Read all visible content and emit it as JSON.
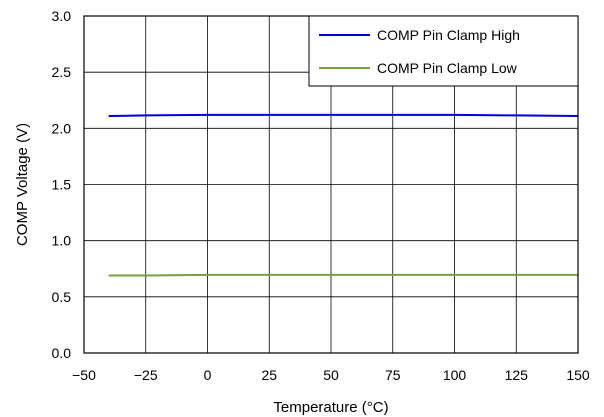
{
  "chart_data": {
    "type": "line",
    "title": "",
    "xlabel": "Temperature (°C)",
    "ylabel": "COMP Voltage (V)",
    "xlim": [
      -50,
      150
    ],
    "ylim": [
      0,
      3.0
    ],
    "x_ticks": [
      "−50",
      "−25",
      "0",
      "25",
      "50",
      "75",
      "100",
      "125",
      "150"
    ],
    "y_ticks": [
      "0.0",
      "0.5",
      "1.0",
      "1.5",
      "2.0",
      "2.5",
      "3.0"
    ],
    "grid": true,
    "legend_position": "top-right",
    "series": [
      {
        "name": "COMP Pin Clamp High",
        "color": "#0000dd",
        "x": [
          -40,
          -25,
          0,
          25,
          50,
          75,
          100,
          125,
          150
        ],
        "y": [
          2.11,
          2.115,
          2.12,
          2.12,
          2.12,
          2.12,
          2.12,
          2.115,
          2.11
        ]
      },
      {
        "name": "COMP Pin Clamp Low",
        "color": "#77a040",
        "x": [
          -40,
          -25,
          0,
          25,
          50,
          75,
          100,
          125,
          150
        ],
        "y": [
          0.69,
          0.69,
          0.695,
          0.695,
          0.695,
          0.695,
          0.695,
          0.695,
          0.695
        ]
      }
    ]
  }
}
